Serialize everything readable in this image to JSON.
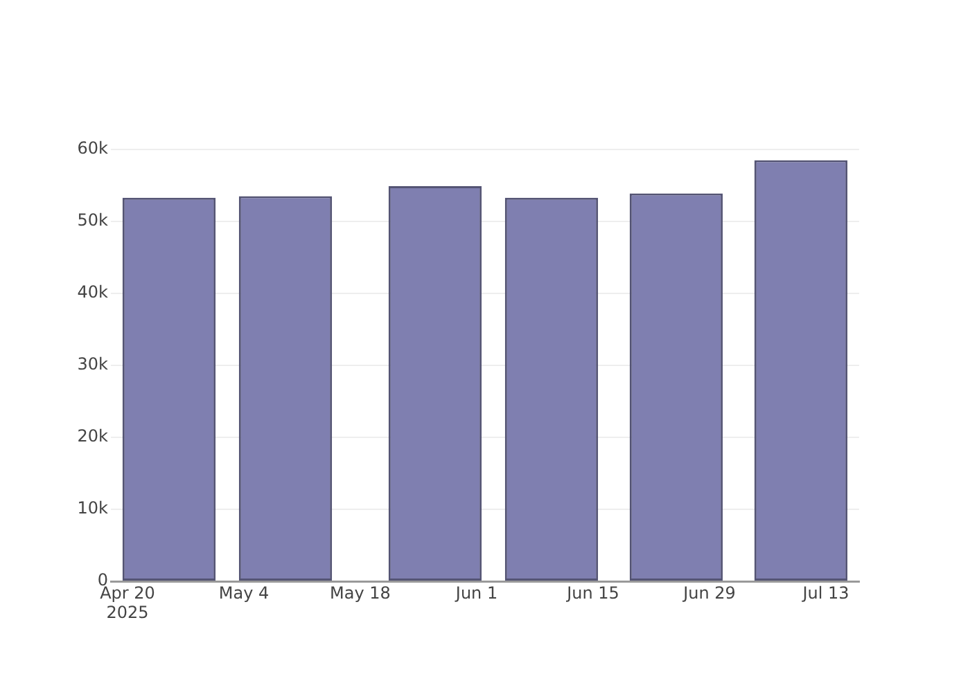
{
  "chart_data": {
    "type": "bar",
    "x": [
      "2025-04-25",
      "2025-05-09",
      "2025-05-27",
      "2025-06-10",
      "2025-06-25",
      "2025-07-10"
    ],
    "values": [
      53300,
      53500,
      54900,
      53300,
      53900,
      58500
    ],
    "color": "#7f7fb0",
    "xlim": [
      "2025-04-18",
      "2025-07-17"
    ],
    "xticks": [
      {
        "value": "2025-04-20",
        "label": "Apr 20\n2025"
      },
      {
        "value": "2025-05-04",
        "label": "May 4"
      },
      {
        "value": "2025-05-18",
        "label": "May 18"
      },
      {
        "value": "2025-06-01",
        "label": "Jun 1"
      },
      {
        "value": "2025-06-15",
        "label": "Jun 15"
      },
      {
        "value": "2025-06-29",
        "label": "Jun 29"
      },
      {
        "value": "2025-07-13",
        "label": "Jul 13"
      }
    ],
    "ylim": [
      0,
      60000
    ],
    "yticks": [
      0,
      {
        "value": 10000,
        "label": "10k"
      },
      {
        "value": 20000,
        "label": "20k"
      },
      {
        "value": 30000,
        "label": "30k"
      },
      {
        "value": 40000,
        "label": "40k"
      },
      {
        "value": 50000,
        "label": "50k"
      },
      {
        "value": 60000,
        "label": "60k"
      }
    ],
    "grid": "y"
  }
}
